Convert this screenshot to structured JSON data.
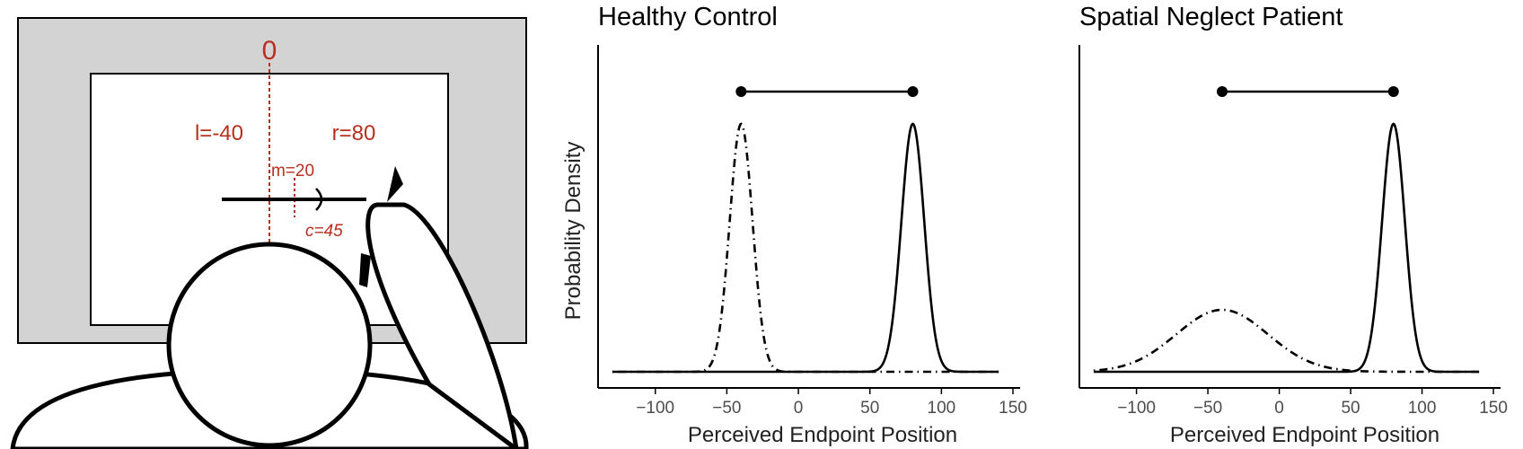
{
  "illustration": {
    "zero_label": "0",
    "left_label": "l=-40",
    "right_label": "r=80",
    "mid_label": "m=20",
    "bisect_label": "c=45",
    "text_color": "#b5301f",
    "screen_fill": "#d3d3d3"
  },
  "chart_data": [
    {
      "type": "line",
      "title": "Healthy Control",
      "xlabel": "Perceived Endpoint Position",
      "ylabel": "Probability Density",
      "xlim": [
        -130,
        140
      ],
      "xticks": [
        -100,
        -50,
        0,
        50,
        100,
        150
      ],
      "xtick_labels": [
        "−100",
        "−50",
        "0",
        "50",
        "100",
        "150"
      ],
      "series": [
        {
          "style": "dotdash",
          "distribution": "normal",
          "mean": -40,
          "sd": 8
        },
        {
          "style": "solid",
          "distribution": "normal",
          "mean": 80,
          "sd": 8
        }
      ],
      "interval": [
        -40,
        80
      ],
      "grid": false
    },
    {
      "type": "line",
      "title": "Spatial Neglect Patient",
      "xlabel": "Perceived Endpoint Position",
      "ylabel": "",
      "xlim": [
        -130,
        140
      ],
      "xticks": [
        -100,
        -50,
        0,
        50,
        100,
        150
      ],
      "xtick_labels": [
        "−100",
        "−50",
        "0",
        "50",
        "100",
        "150"
      ],
      "series": [
        {
          "style": "dotdash",
          "distribution": "normal",
          "mean": -40,
          "sd": 32
        },
        {
          "style": "solid",
          "distribution": "normal",
          "mean": 80,
          "sd": 8
        }
      ],
      "interval": [
        -40,
        80
      ],
      "grid": false
    }
  ]
}
